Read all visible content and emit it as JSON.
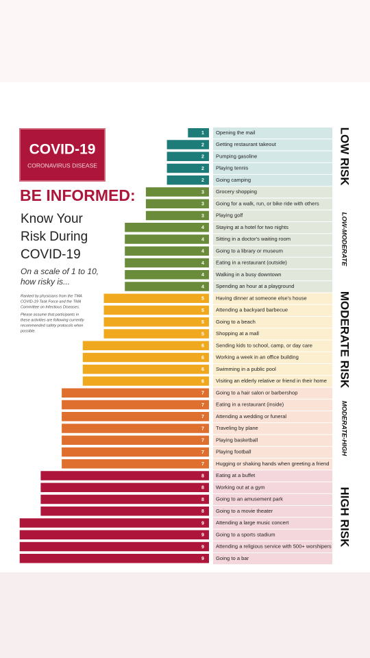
{
  "chart_data": {
    "type": "bar",
    "orientation": "horizontal",
    "badge_title": "COVID-19",
    "badge_subtitle": "CORONAVIRUS DISEASE",
    "title": "BE INFORMED:",
    "subtitle_lines": [
      "Know Your",
      "Risk During",
      "COVID-19"
    ],
    "prompt_lines": [
      "On a scale of 1 to 10,",
      "how risky is..."
    ],
    "note_lines": [
      "Ranked by physicians from the TMA",
      "COVID-19 Task Force and the TMA",
      "Committee on Infectious Diseases.",
      "Please assume that participants in",
      "these activities are following currently",
      "recommended safety protocols when",
      "possible."
    ],
    "series": [
      {
        "name": "LOW RISK",
        "label_style": "major",
        "color": "#1d7c78",
        "background": "#d3e7e7",
        "categories": [
          "Opening the mail",
          "Getting restaurant takeout",
          "Pumping gasoline",
          "Playing tennis",
          "Going camping"
        ],
        "values": [
          1,
          2,
          2,
          2,
          2
        ]
      },
      {
        "name": "LOW-MODERATE",
        "label_style": "minor",
        "color": "#6a8c3a",
        "background": "#e2e7dc",
        "categories": [
          "Grocery shopping",
          "Going for a walk, run, or bike ride with others",
          "Playing golf",
          "Staying at a hotel for two nights",
          "Sitting in a doctor's waiting room",
          "Going to a library or museum",
          "Eating in a restaurant (outside)",
          "Walking in a busy downtown",
          "Spending an hour at a playground"
        ],
        "values": [
          3,
          3,
          3,
          4,
          4,
          4,
          4,
          4,
          4
        ]
      },
      {
        "name": "MODERATE RISK",
        "label_style": "major",
        "color": "#f0a91e",
        "background": "#fcefd0",
        "categories": [
          "Having dinner at someone else's house",
          "Attending a backyard barbecue",
          "Going to a beach",
          "Shopping at a mall",
          "Sending kids to school, camp, or day care",
          "Working a week in an office building",
          "Swimming in a public pool",
          "Visiting an elderly relative or friend in their home"
        ],
        "values": [
          5,
          5,
          5,
          5,
          6,
          6,
          6,
          6
        ]
      },
      {
        "name": "MODERATE-HIGH",
        "label_style": "minor",
        "color": "#df6f2e",
        "background": "#fae2d6",
        "categories": [
          "Going to a hair salon or barbershop",
          "Eating in a restaurant (inside)",
          "Attending a wedding or funeral",
          "Traveling by plane",
          "Playing basketball",
          "Playing football",
          "Hugging or shaking hands when greeting a friend"
        ],
        "values": [
          7,
          7,
          7,
          7,
          7,
          7,
          7
        ]
      },
      {
        "name": "HIGH RISK",
        "label_style": "major",
        "color": "#ad163a",
        "background": "#f4d7dd",
        "categories": [
          "Eating at a buffet",
          "Working out at a gym",
          "Going to an amusement park",
          "Going to a movie theater",
          "Attending a large music concert",
          "Going to a sports stadium",
          "Attending a religious service with 500+ worshipers",
          "Going to a bar"
        ],
        "values": [
          8,
          8,
          8,
          8,
          9,
          9,
          9,
          9
        ]
      }
    ]
  }
}
